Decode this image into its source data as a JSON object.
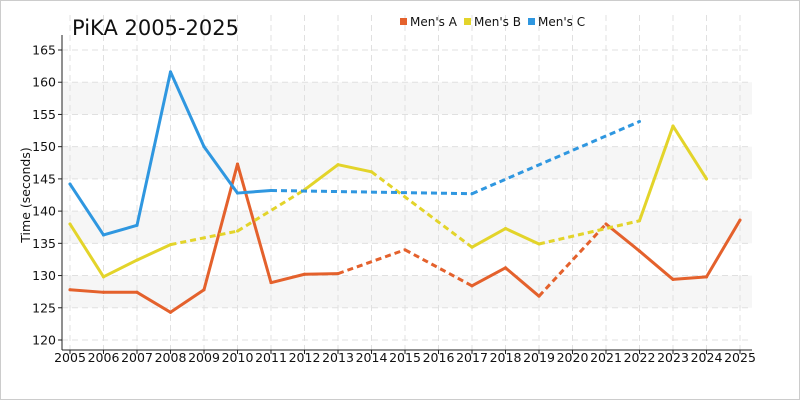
{
  "chart_data": {
    "type": "line",
    "title": "PiKA 2005-2025",
    "xlabel": "",
    "ylabel": "Time (seconds)",
    "ylim": [
      120,
      165
    ],
    "yticks": [
      120,
      125,
      130,
      135,
      140,
      145,
      150,
      155,
      160,
      165
    ],
    "x": [
      2005,
      2006,
      2007,
      2008,
      2009,
      2010,
      2011,
      2012,
      2013,
      2014,
      2015,
      2016,
      2017,
      2018,
      2019,
      2020,
      2021,
      2022,
      2023,
      2024,
      2025
    ],
    "grid": true,
    "legend_position": "top",
    "note": "dashed segments bridge missing years",
    "series": [
      {
        "name": "Men's A",
        "color": "#e4612c",
        "values": [
          127.8,
          127.4,
          127.4,
          124.3,
          127.8,
          147.3,
          128.9,
          130.2,
          130.3,
          null,
          134.0,
          null,
          128.4,
          131.2,
          126.8,
          null,
          138.0,
          133.8,
          129.4,
          129.8,
          138.6
        ]
      },
      {
        "name": "Men's B",
        "color": "#e3d42a",
        "values": [
          138.0,
          129.8,
          132.4,
          134.8,
          null,
          136.9,
          null,
          143.3,
          147.2,
          146.1,
          null,
          null,
          134.4,
          137.3,
          134.9,
          null,
          null,
          138.5,
          153.2,
          145.0,
          null
        ]
      },
      {
        "name": "Men's C",
        "color": "#2f97e0",
        "values": [
          144.2,
          136.3,
          137.8,
          161.6,
          150.0,
          142.8,
          143.2,
          null,
          null,
          null,
          null,
          null,
          142.7,
          null,
          null,
          null,
          null,
          153.9,
          null,
          null,
          null
        ]
      }
    ]
  }
}
